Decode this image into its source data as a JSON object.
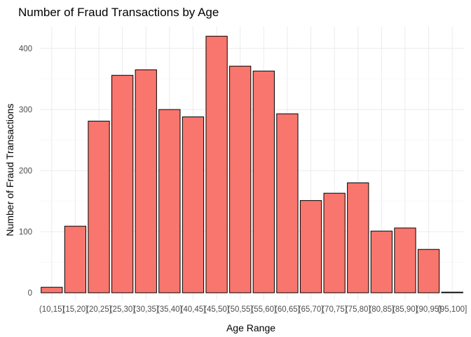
{
  "chart_data": {
    "type": "bar",
    "title": "Number of Fraud Transactions by Age",
    "xlabel": "Age Range",
    "ylabel": "Number of Fraud Transactions",
    "categories": [
      "(10,15]",
      "(15,20]",
      "(20,25]",
      "(25,30]",
      "(30,35]",
      "(35,40]",
      "(40,45]",
      "(45,50]",
      "(50,55]",
      "(55,60]",
      "(60,65]",
      "(65,70]",
      "(70,75]",
      "(75,80]",
      "(80,85]",
      "(85,90]",
      "(90,95]",
      "(95,100]"
    ],
    "values": [
      9,
      109,
      281,
      356,
      365,
      300,
      288,
      420,
      371,
      363,
      293,
      151,
      163,
      180,
      101,
      106,
      71,
      1
    ],
    "ylim": [
      0,
      440
    ],
    "yticks": [
      0,
      100,
      200,
      300,
      400
    ],
    "grid": true,
    "legend": "none",
    "bar_color": "#f8766d",
    "bar_outline": "#000000"
  }
}
